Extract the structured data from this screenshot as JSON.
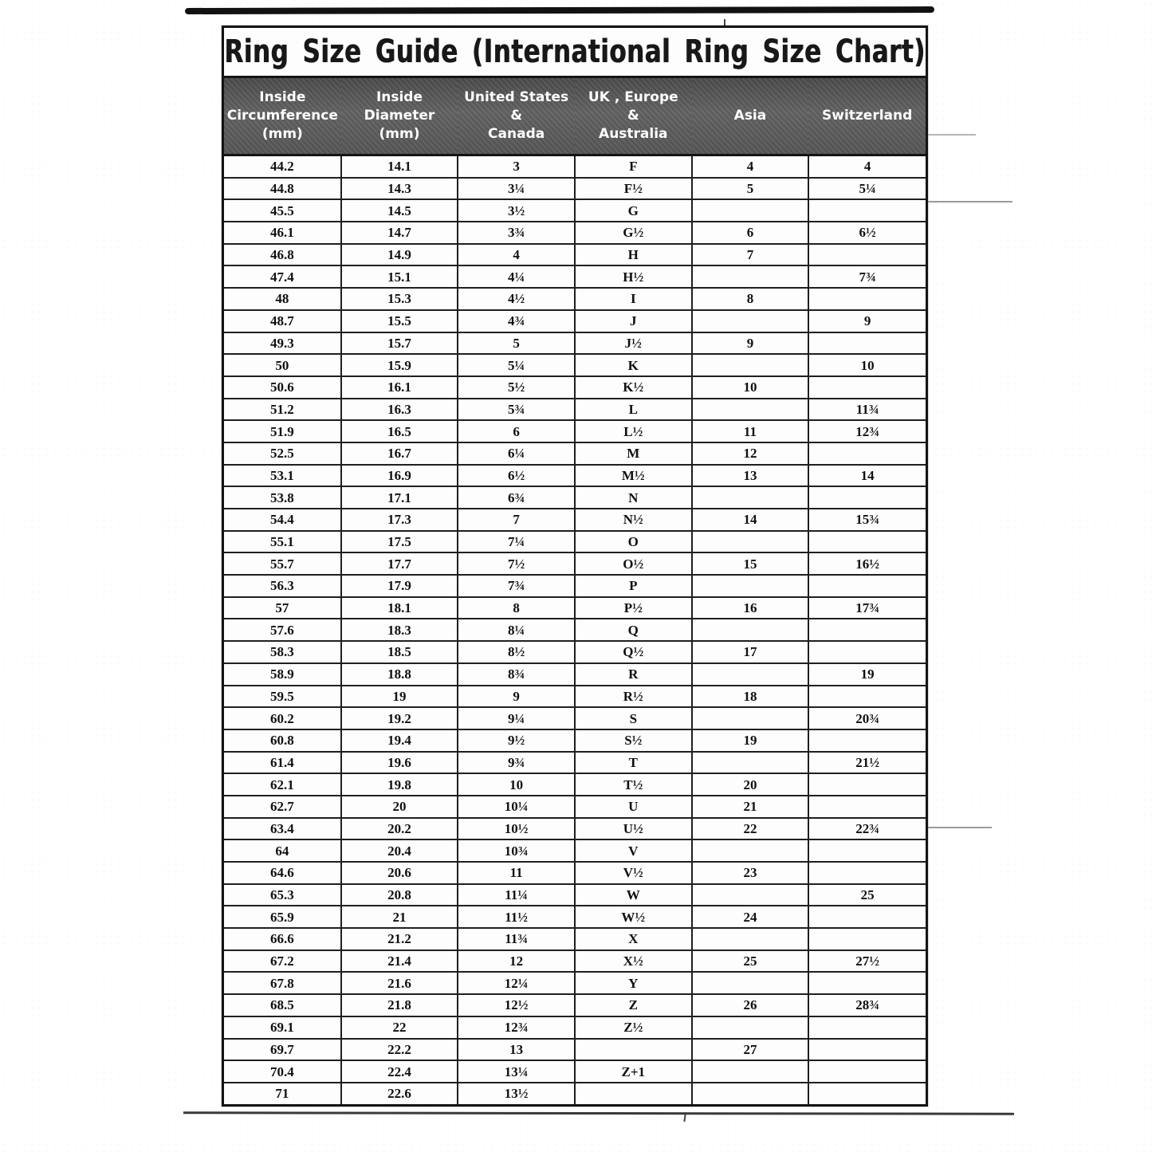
{
  "page": {
    "title": "Ring Size Guide (International Ring Size Chart)"
  },
  "colors": {
    "paper": "#fdfdfd",
    "header_bg": "#595959",
    "header_text": "#ffffff",
    "border": "#1f1f1f"
  },
  "table": {
    "columns": [
      {
        "label": "Inside Circumference (mm)",
        "lines": [
          "Inside",
          "Circumference",
          "(mm)"
        ]
      },
      {
        "label": "Inside Diameter (mm)",
        "lines": [
          "Inside",
          "Diameter",
          "(mm)"
        ]
      },
      {
        "label": "United States & Canada",
        "lines": [
          "United States",
          "&",
          "Canada"
        ]
      },
      {
        "label": "UK , Europe & Australia",
        "lines": [
          "UK , Europe",
          "&",
          "Australia"
        ]
      },
      {
        "label": "Asia",
        "lines": [
          "Asia"
        ]
      },
      {
        "label": "Switzerland",
        "lines": [
          "Switzerland"
        ]
      }
    ],
    "rows": [
      [
        "44.2",
        "14.1",
        "3",
        "F",
        "4",
        "4"
      ],
      [
        "44.8",
        "14.3",
        "3¼",
        "F½",
        "5",
        "5¼"
      ],
      [
        "45.5",
        "14.5",
        "3½",
        "G",
        "",
        ""
      ],
      [
        "46.1",
        "14.7",
        "3¾",
        "G½",
        "6",
        "6½"
      ],
      [
        "46.8",
        "14.9",
        "4",
        "H",
        "7",
        ""
      ],
      [
        "47.4",
        "15.1",
        "4¼",
        "H½",
        "",
        "7¾"
      ],
      [
        "48",
        "15.3",
        "4½",
        "I",
        "8",
        ""
      ],
      [
        "48.7",
        "15.5",
        "4¾",
        "J",
        "",
        "9"
      ],
      [
        "49.3",
        "15.7",
        "5",
        "J½",
        "9",
        ""
      ],
      [
        "50",
        "15.9",
        "5¼",
        "K",
        "",
        "10"
      ],
      [
        "50.6",
        "16.1",
        "5½",
        "K½",
        "10",
        ""
      ],
      [
        "51.2",
        "16.3",
        "5¾",
        "L",
        "",
        "11¾"
      ],
      [
        "51.9",
        "16.5",
        "6",
        "L½",
        "11",
        "12¾"
      ],
      [
        "52.5",
        "16.7",
        "6¼",
        "M",
        "12",
        ""
      ],
      [
        "53.1",
        "16.9",
        "6½",
        "M½",
        "13",
        "14"
      ],
      [
        "53.8",
        "17.1",
        "6¾",
        "N",
        "",
        ""
      ],
      [
        "54.4",
        "17.3",
        "7",
        "N½",
        "14",
        "15¾"
      ],
      [
        "55.1",
        "17.5",
        "7¼",
        "O",
        "",
        ""
      ],
      [
        "55.7",
        "17.7",
        "7½",
        "O½",
        "15",
        "16½"
      ],
      [
        "56.3",
        "17.9",
        "7¾",
        "P",
        "",
        ""
      ],
      [
        "57",
        "18.1",
        "8",
        "P½",
        "16",
        "17¾"
      ],
      [
        "57.6",
        "18.3",
        "8¼",
        "Q",
        "",
        ""
      ],
      [
        "58.3",
        "18.5",
        "8½",
        "Q½",
        "17",
        ""
      ],
      [
        "58.9",
        "18.8",
        "8¾",
        "R",
        "",
        "19"
      ],
      [
        "59.5",
        "19",
        "9",
        "R½",
        "18",
        ""
      ],
      [
        "60.2",
        "19.2",
        "9¼",
        "S",
        "",
        "20¾"
      ],
      [
        "60.8",
        "19.4",
        "9½",
        "S½",
        "19",
        ""
      ],
      [
        "61.4",
        "19.6",
        "9¾",
        "T",
        "",
        "21½"
      ],
      [
        "62.1",
        "19.8",
        "10",
        "T½",
        "20",
        ""
      ],
      [
        "62.7",
        "20",
        "10¼",
        "U",
        "21",
        ""
      ],
      [
        "63.4",
        "20.2",
        "10½",
        "U½",
        "22",
        "22¾"
      ],
      [
        "64",
        "20.4",
        "10¾",
        "V",
        "",
        ""
      ],
      [
        "64.6",
        "20.6",
        "11",
        "V½",
        "23",
        ""
      ],
      [
        "65.3",
        "20.8",
        "11¼",
        "W",
        "",
        "25"
      ],
      [
        "65.9",
        "21",
        "11½",
        "W½",
        "24",
        ""
      ],
      [
        "66.6",
        "21.2",
        "11¾",
        "X",
        "",
        ""
      ],
      [
        "67.2",
        "21.4",
        "12",
        "X½",
        "25",
        "27½"
      ],
      [
        "67.8",
        "21.6",
        "12¼",
        "Y",
        "",
        ""
      ],
      [
        "68.5",
        "21.8",
        "12½",
        "Z",
        "26",
        "28¾"
      ],
      [
        "69.1",
        "22",
        "12¾",
        "Z½",
        "",
        ""
      ],
      [
        "69.7",
        "22.2",
        "13",
        "",
        "27",
        ""
      ],
      [
        "70.4",
        "22.4",
        "13¼",
        "Z+1",
        "",
        ""
      ],
      [
        "71",
        "22.6",
        "13½",
        "",
        "",
        ""
      ]
    ]
  }
}
